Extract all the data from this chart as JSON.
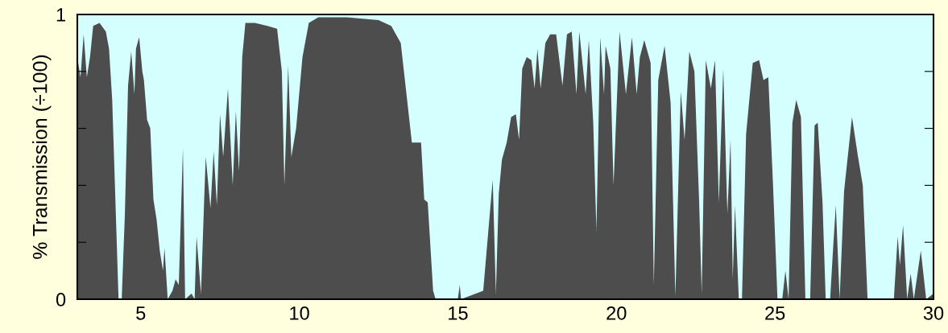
{
  "chart_data": {
    "type": "area",
    "ylabel": "% Transmission (÷100)",
    "xlim": [
      3,
      30
    ],
    "ylim": [
      0,
      1
    ],
    "xticks": [
      5,
      10,
      15,
      20,
      25,
      30
    ],
    "yticks": [
      0,
      {
        "value": 0.2,
        "label": null
      },
      {
        "value": 0.4,
        "label": null
      },
      {
        "value": 0.6,
        "label": null
      },
      {
        "value": 0.8,
        "label": null
      },
      1
    ],
    "bands": [
      {
        "axis": "x",
        "from": 3,
        "to": 30,
        "color": "#d5ffff"
      }
    ],
    "grid": false,
    "legend": false,
    "marker": "none",
    "series": [
      {
        "color": "#4d4d4d",
        "x": [
          3.0,
          3.1,
          3.2,
          3.3,
          3.4,
          3.5,
          3.7,
          3.9,
          4.0,
          4.1,
          4.2,
          4.3,
          4.4,
          4.5,
          4.6,
          4.7,
          4.8,
          4.85,
          4.95,
          5.05,
          5.1,
          5.2,
          5.3,
          5.4,
          5.5,
          5.6,
          5.7,
          5.75,
          5.85,
          6.0,
          6.1,
          6.2,
          6.33,
          6.4,
          6.6,
          6.7,
          6.76,
          6.9,
          7.0,
          7.05,
          7.2,
          7.3,
          7.4,
          7.5,
          7.6,
          7.6,
          7.75,
          7.9,
          8.0,
          8.1,
          8.2,
          8.3,
          8.6,
          9.0,
          9.3,
          9.45,
          9.53,
          9.65,
          9.75,
          9.9,
          10.1,
          10.3,
          10.6,
          11.5,
          12.5,
          12.9,
          13.2,
          13.4,
          13.55,
          13.84,
          13.94,
          14.05,
          14.22,
          14.3,
          15.0,
          15.06,
          15.1,
          15.8,
          16.1,
          16.2,
          16.29,
          16.39,
          16.54,
          16.68,
          16.83,
          16.93,
          17.03,
          17.17,
          17.32,
          17.42,
          17.51,
          17.61,
          17.76,
          17.91,
          18.1,
          18.3,
          18.44,
          18.59,
          18.74,
          18.83,
          19.03,
          19.13,
          19.27,
          19.37,
          19.49,
          19.61,
          19.66,
          19.81,
          19.91,
          20.1,
          20.3,
          20.49,
          20.64,
          20.74,
          20.88,
          21.08,
          21.18,
          21.32,
          21.52,
          21.71,
          21.86,
          22.03,
          22.15,
          22.3,
          22.46,
          22.61,
          22.69,
          22.82,
          22.98,
          23.11,
          23.23,
          23.37,
          23.5,
          23.6,
          23.67,
          23.74,
          23.86,
          23.96,
          24.09,
          24.3,
          24.5,
          24.64,
          24.79,
          24.94,
          25.08,
          25.23,
          25.33,
          25.43,
          25.55,
          25.67,
          25.82,
          25.96,
          26.11,
          26.25,
          26.35,
          26.5,
          26.6,
          26.74,
          26.84,
          26.92,
          27.04,
          27.18,
          27.43,
          27.62,
          27.77,
          27.92,
          28.75,
          28.87,
          28.94,
          29.04,
          29.17,
          29.28,
          29.38,
          29.6,
          29.77,
          30.0
        ],
        "values": [
          0.85,
          0.78,
          0.93,
          0.78,
          0.85,
          0.96,
          0.97,
          0.94,
          0.88,
          0.7,
          0.35,
          0.0,
          0.0,
          0.3,
          0.75,
          0.87,
          0.72,
          0.88,
          0.92,
          0.8,
          0.77,
          0.63,
          0.6,
          0.35,
          0.28,
          0.17,
          0.1,
          0.18,
          0.0,
          0.03,
          0.07,
          0.05,
          0.53,
          0.0,
          0.02,
          0.0,
          0.22,
          0.02,
          0.35,
          0.5,
          0.32,
          0.52,
          0.33,
          0.65,
          0.5,
          0.5,
          0.74,
          0.4,
          0.66,
          0.45,
          0.85,
          0.97,
          0.97,
          0.96,
          0.95,
          0.8,
          0.4,
          0.82,
          0.5,
          0.6,
          0.85,
          0.97,
          0.99,
          0.99,
          0.98,
          0.96,
          0.9,
          0.7,
          0.55,
          0.55,
          0.35,
          0.34,
          0.03,
          0.0,
          0.0,
          0.05,
          0.0,
          0.03,
          0.42,
          0.02,
          0.37,
          0.49,
          0.55,
          0.64,
          0.65,
          0.56,
          0.81,
          0.85,
          0.84,
          0.74,
          0.88,
          0.74,
          0.9,
          0.93,
          0.93,
          0.75,
          0.93,
          0.94,
          0.72,
          0.94,
          0.72,
          0.91,
          0.62,
          0.24,
          0.92,
          0.72,
          0.89,
          0.81,
          0.4,
          0.94,
          0.72,
          0.92,
          0.72,
          0.85,
          0.91,
          0.83,
          0.05,
          0.77,
          0.89,
          0.69,
          0.01,
          0.73,
          0.56,
          0.87,
          0.8,
          0.34,
          0.02,
          0.84,
          0.74,
          0.84,
          0.34,
          0.81,
          0.3,
          0.56,
          0.07,
          0.33,
          0.0,
          0.0,
          0.58,
          0.83,
          0.84,
          0.77,
          0.78,
          0.4,
          0.0,
          0.0,
          0.1,
          0.0,
          0.62,
          0.7,
          0.64,
          0.0,
          0.0,
          0.61,
          0.62,
          0.34,
          0.0,
          0.0,
          0.19,
          0.33,
          0.0,
          0.38,
          0.64,
          0.5,
          0.4,
          0.0,
          0.0,
          0.22,
          0.12,
          0.26,
          0.0,
          0.09,
          0.0,
          0.17,
          0.0,
          0.02
        ]
      }
    ]
  }
}
